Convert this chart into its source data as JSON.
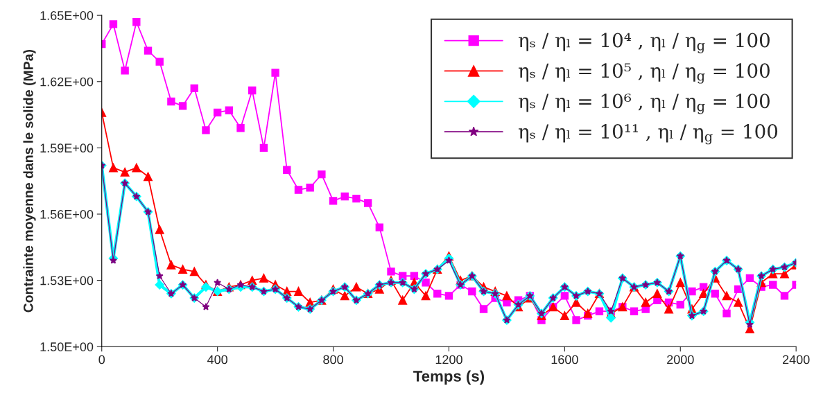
{
  "chart_data": {
    "type": "line",
    "xlabel": "Temps (s)",
    "ylabel": "Contrainte moyenne dans le solide (MPa)",
    "x": [
      0,
      40,
      80,
      120,
      160,
      200,
      240,
      280,
      320,
      360,
      400,
      440,
      480,
      520,
      560,
      600,
      640,
      680,
      720,
      760,
      800,
      840,
      880,
      920,
      960,
      1000,
      1040,
      1080,
      1120,
      1160,
      1200,
      1240,
      1280,
      1320,
      1360,
      1400,
      1440,
      1480,
      1520,
      1560,
      1600,
      1640,
      1680,
      1720,
      1760,
      1800,
      1840,
      1880,
      1920,
      1960,
      2000,
      2040,
      2080,
      2120,
      2160,
      2200,
      2240,
      2280,
      2320,
      2360,
      2400
    ],
    "series": [
      {
        "name": "ηₛ / ηₗ = 10⁴ , ηₗ / η$_{g}$ = 100",
        "color": "#ff00ff",
        "marker": "square",
        "values": [
          1.637,
          1.646,
          1.625,
          1.647,
          1.634,
          1.629,
          1.611,
          1.609,
          1.617,
          1.598,
          1.606,
          1.607,
          1.599,
          1.616,
          1.59,
          1.624,
          1.58,
          1.571,
          1.572,
          1.578,
          1.566,
          1.568,
          1.567,
          1.565,
          1.554,
          1.534,
          1.532,
          1.532,
          1.529,
          1.524,
          1.523,
          1.528,
          1.525,
          1.517,
          1.522,
          1.52,
          1.521,
          1.523,
          1.512,
          1.518,
          1.523,
          1.512,
          1.514,
          1.516,
          1.516,
          1.518,
          1.516,
          1.517,
          1.521,
          1.52,
          1.519,
          1.525,
          1.527,
          1.524,
          1.515,
          1.526,
          1.531,
          1.527,
          1.528,
          1.523,
          1.528
        ]
      },
      {
        "name": "ηₛ / ηₗ = 10⁵ , ηₗ / η$_{g}$ = 100",
        "color": "#ff0000",
        "marker": "triangle",
        "values": [
          1.606,
          1.581,
          1.579,
          1.581,
          1.577,
          1.553,
          1.537,
          1.535,
          1.534,
          1.528,
          1.525,
          1.527,
          1.528,
          1.53,
          1.531,
          1.528,
          1.525,
          1.525,
          1.52,
          1.521,
          1.526,
          1.523,
          1.527,
          1.524,
          1.526,
          1.53,
          1.521,
          1.529,
          1.523,
          1.535,
          1.541,
          1.53,
          1.532,
          1.527,
          1.525,
          1.523,
          1.518,
          1.522,
          1.514,
          1.518,
          1.514,
          1.52,
          1.515,
          1.524,
          1.515,
          1.518,
          1.527,
          1.52,
          1.524,
          1.517,
          1.529,
          1.517,
          1.524,
          1.531,
          1.523,
          1.52,
          1.508,
          1.529,
          1.533,
          1.533,
          1.537
        ]
      },
      {
        "name": "ηₛ / ηₗ = 10⁶ , ηₗ / η$_{g}$ = 100",
        "color": "#00ffff",
        "marker": "diamond",
        "values": [
          1.582,
          1.54,
          1.574,
          1.568,
          1.561,
          1.528,
          1.524,
          1.528,
          1.522,
          1.527,
          1.525,
          1.526,
          1.527,
          1.527,
          1.525,
          1.526,
          1.522,
          1.518,
          1.517,
          1.521,
          1.525,
          1.527,
          1.521,
          1.524,
          1.528,
          1.529,
          1.529,
          1.526,
          1.533,
          1.535,
          1.54,
          1.528,
          1.532,
          1.525,
          1.524,
          1.512,
          1.519,
          1.523,
          1.515,
          1.522,
          1.527,
          1.523,
          1.525,
          1.524,
          1.513,
          1.531,
          1.527,
          1.528,
          1.529,
          1.525,
          1.541,
          1.514,
          1.516,
          1.534,
          1.539,
          1.535,
          1.511,
          1.532,
          1.535,
          1.536,
          1.538
        ]
      },
      {
        "name": "ηₛ / ηₗ = 10¹¹ , ηₗ / η$_{g}$ = 100",
        "color": "#800080",
        "marker": "star",
        "values": [
          1.582,
          1.539,
          1.574,
          1.568,
          1.561,
          1.532,
          1.524,
          1.528,
          1.522,
          1.518,
          1.529,
          1.526,
          1.528,
          1.527,
          1.525,
          1.526,
          1.522,
          1.518,
          1.517,
          1.521,
          1.525,
          1.527,
          1.521,
          1.524,
          1.528,
          1.529,
          1.529,
          1.526,
          1.533,
          1.535,
          1.539,
          1.528,
          1.532,
          1.525,
          1.524,
          1.512,
          1.519,
          1.523,
          1.515,
          1.522,
          1.527,
          1.523,
          1.525,
          1.524,
          1.516,
          1.531,
          1.527,
          1.528,
          1.529,
          1.525,
          1.541,
          1.514,
          1.516,
          1.534,
          1.539,
          1.535,
          1.51,
          1.532,
          1.535,
          1.536,
          1.538
        ]
      }
    ],
    "xlim": [
      0,
      2400
    ],
    "xticks": [
      0,
      400,
      800,
      1200,
      1600,
      2000,
      2400
    ],
    "ylim": [
      1.5,
      1.65
    ],
    "yticks": [
      {
        "value": 1.5,
        "label": "1.50E+00"
      },
      {
        "value": 1.53,
        "label": "1.53E+00"
      },
      {
        "value": 1.56,
        "label": "1.56E+00"
      },
      {
        "value": 1.59,
        "label": "1.59E+00"
      },
      {
        "value": 1.62,
        "label": "1.62E+00"
      },
      {
        "value": 1.65,
        "label": "1.65E+00"
      }
    ],
    "grid": false,
    "legend": "top right",
    "line_style": "solid"
  }
}
